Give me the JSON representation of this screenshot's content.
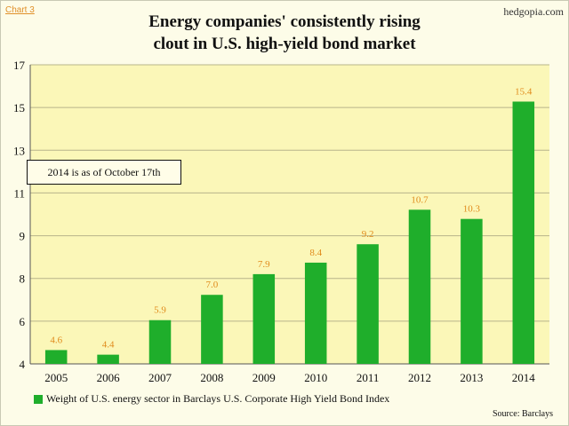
{
  "corner_tag": "Chart 3",
  "brand": "hedgopia.com",
  "title_line1": "Energy companies'  consistently rising",
  "title_line2": "clout in U.S. high-yield bond  market",
  "note": "2014 is as of October 17th",
  "source": "Source: Barclays",
  "colors": {
    "bar": "#1fae2b",
    "plot_background": "#fbf7b8",
    "label": "#e08b1c",
    "grid": "#b7b48a"
  },
  "chart_data": {
    "type": "bar",
    "categories": [
      "2005",
      "2006",
      "2007",
      "2008",
      "2009",
      "2010",
      "2011",
      "2012",
      "2013",
      "2014"
    ],
    "series": [
      {
        "name": "Weight of U.S. energy sector in Barclays U.S. Corporate High Yield Bond Index",
        "values": [
          4.6,
          4.4,
          5.9,
          7.0,
          7.9,
          8.4,
          9.2,
          10.7,
          10.3,
          15.4
        ]
      }
    ],
    "y_ticks": [
      "4",
      "6",
      "8",
      "9",
      "11",
      "13",
      "15",
      "17"
    ],
    "ylim": [
      4,
      17
    ],
    "grid": true,
    "legend_position": "bottom-left"
  }
}
